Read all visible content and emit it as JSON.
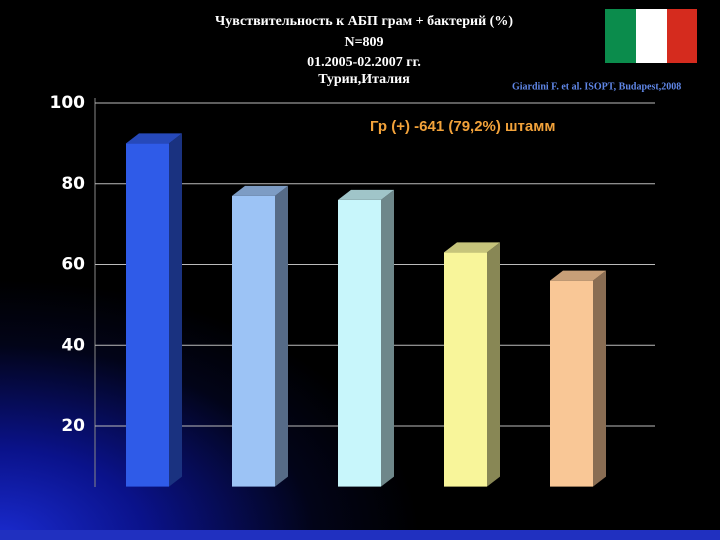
{
  "chart_data": {
    "type": "bar",
    "title": [
      "Чувствительность к АБП грам + бактерий (%)",
      "N=809",
      "01.2005-02.2007 гг.",
      "Турин,Италия"
    ],
    "source": "Giardini F. et al. ISOPT, Budapest,2008",
    "annotation": "Гр (+) -641 (79,2%) штамм",
    "categories": [
      null,
      null,
      null,
      null,
      null
    ],
    "values": [
      90,
      77,
      76,
      63,
      56
    ],
    "colors": [
      "#2f5be8",
      "#9cc3f5",
      "#c8f6fb",
      "#f8f59a",
      "#f9c796"
    ],
    "ylim": [
      5,
      100
    ],
    "yticks": [
      20,
      40,
      60,
      80,
      100
    ],
    "grid": true
  }
}
